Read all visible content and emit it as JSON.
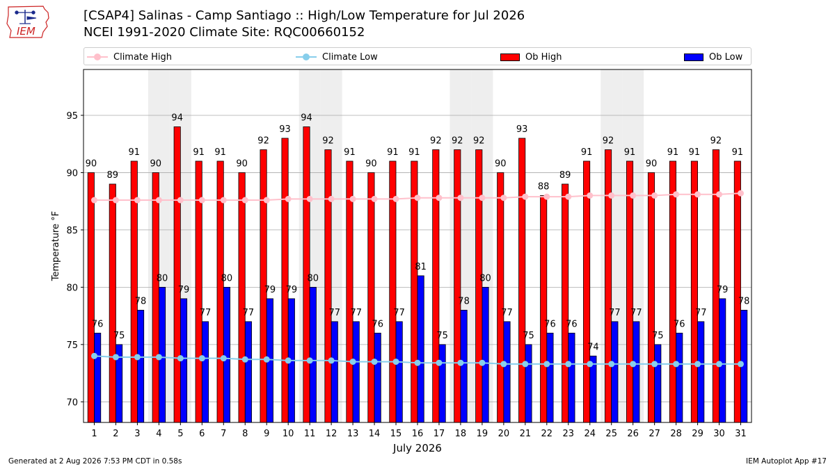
{
  "logo": {
    "text": "IEM"
  },
  "header": {
    "title_line1": "[CSAP4] Salinas - Camp Santiago :: High/Low Temperature for Jul 2026",
    "title_line2": "NCEI 1991-2020 Climate Site: RQC00660152"
  },
  "legend": {
    "climate_high": "Climate High",
    "climate_low": "Climate Low",
    "ob_high": "Ob High",
    "ob_low": "Ob Low"
  },
  "colors": {
    "ob_high": "#ff0000",
    "ob_low": "#0000ff",
    "climate_high": "#ffc0cb",
    "climate_low": "#87ceeb",
    "weekend_shade": "#eeeeee",
    "grid": "#aaaaaa"
  },
  "chart_data": {
    "type": "bar",
    "xlabel": "July 2026",
    "ylabel": "Temperature °F",
    "ylim": [
      68.2,
      99.0
    ],
    "yticks": [
      70,
      75,
      80,
      85,
      90,
      95
    ],
    "grid": "horizontal",
    "legend_position": "top",
    "categories": [
      "1",
      "2",
      "3",
      "4",
      "5",
      "6",
      "7",
      "8",
      "9",
      "10",
      "11",
      "12",
      "13",
      "14",
      "15",
      "16",
      "17",
      "18",
      "19",
      "20",
      "21",
      "22",
      "23",
      "24",
      "25",
      "26",
      "27",
      "28",
      "29",
      "30",
      "31"
    ],
    "shaded_days": [
      "4",
      "5",
      "11",
      "12",
      "18",
      "19",
      "25",
      "26"
    ],
    "series": [
      {
        "name": "Ob High",
        "kind": "bar",
        "values": [
          90,
          89,
          91,
          90,
          94,
          91,
          91,
          90,
          92,
          93,
          94,
          92,
          91,
          90,
          91,
          91,
          92,
          92,
          92,
          90,
          93,
          88,
          89,
          91,
          92,
          91,
          90,
          91,
          91,
          92,
          91
        ]
      },
      {
        "name": "Ob Low",
        "kind": "bar",
        "values": [
          76,
          75,
          78,
          80,
          79,
          77,
          80,
          77,
          79,
          79,
          80,
          77,
          77,
          76,
          77,
          81,
          75,
          78,
          80,
          77,
          75,
          76,
          76,
          74,
          77,
          77,
          75,
          76,
          77,
          79,
          78
        ]
      },
      {
        "name": "Climate High",
        "kind": "line",
        "values": [
          87.6,
          87.6,
          87.6,
          87.6,
          87.6,
          87.6,
          87.6,
          87.6,
          87.6,
          87.7,
          87.7,
          87.7,
          87.7,
          87.7,
          87.7,
          87.8,
          87.8,
          87.8,
          87.8,
          87.8,
          87.9,
          87.9,
          87.9,
          88.0,
          88.0,
          88.0,
          88.0,
          88.1,
          88.1,
          88.1,
          88.2
        ]
      },
      {
        "name": "Climate Low",
        "kind": "line",
        "values": [
          74.0,
          73.9,
          73.9,
          73.9,
          73.8,
          73.8,
          73.8,
          73.7,
          73.7,
          73.6,
          73.6,
          73.6,
          73.5,
          73.5,
          73.5,
          73.4,
          73.4,
          73.4,
          73.4,
          73.3,
          73.3,
          73.3,
          73.3,
          73.3,
          73.3,
          73.3,
          73.3,
          73.3,
          73.3,
          73.3,
          73.3
        ]
      }
    ]
  },
  "footer": {
    "generated": "Generated at 2 Aug 2026 7:53 PM CDT in 0.58s",
    "app": "IEM Autoplot App #17"
  }
}
